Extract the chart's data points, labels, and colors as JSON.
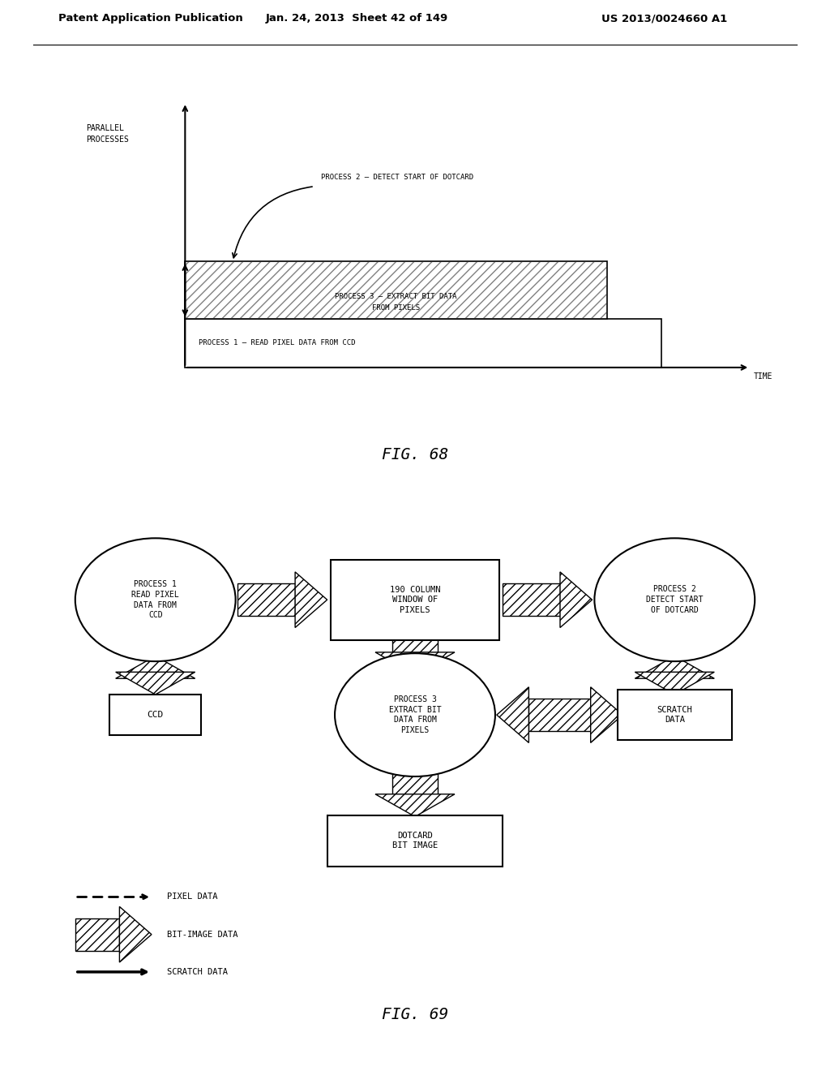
{
  "bg_color": "#ffffff",
  "header_left": "Patent Application Publication",
  "header_center": "Jan. 24, 2013  Sheet 42 of 149",
  "header_right": "US 2013/0024660 A1",
  "fig68_caption": "FIG. 68",
  "fig69_caption": "FIG. 69",
  "fig68": {
    "ylabel": "PARALLEL\nPROCESSES",
    "xlabel": "TIME",
    "process1_label": "PROCESS 1 – READ PIXEL DATA FROM CCD",
    "process2_label": "PROCESS 2 – DETECT START OF DOTCARD",
    "process3_line1": "PROCESS 3 – EXTRACT BIT DATA",
    "process3_line2": "FROM PIXELS"
  },
  "fig69": {
    "circle_p1": "PROCESS 1\nREAD PIXEL\nDATA FROM\nCCD",
    "circle_p2": "PROCESS 2\nDETECT START\nOF DOTCARD",
    "circle_p3": "PROCESS 3\nEXTRACT BIT\nDATA FROM\nPIXELS",
    "box_window": "190 COLUMN\nWINDOW OF\nPIXELS",
    "box_ccd": "CCD",
    "box_scratch": "SCRATCH\nDATA",
    "box_dotcard": "DOTCARD\nBIT IMAGE",
    "legend_pixel": "PIXEL DATA",
    "legend_bitimage": "BIT-IMAGE DATA",
    "legend_scratch": "SCRATCH DATA"
  }
}
